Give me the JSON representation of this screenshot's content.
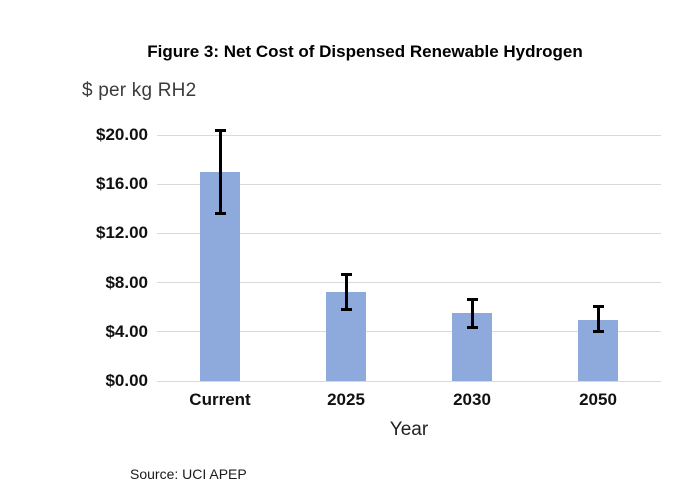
{
  "chart_data": {
    "type": "bar",
    "title": "Figure 3: Net Cost of Dispensed Renewable Hydrogen",
    "ylabel": "$ per kg RH2",
    "xlabel": "Year",
    "source_note": "Source: UCI APEP",
    "categories": [
      "Current",
      "2025",
      "2030",
      "2050"
    ],
    "values": [
      17.0,
      7.2,
      5.5,
      5.0
    ],
    "error_bars": {
      "low": [
        13.6,
        5.8,
        4.3,
        4.0
      ],
      "high": [
        20.4,
        8.7,
        6.7,
        6.1
      ]
    },
    "ytick_values": [
      0,
      4,
      8,
      12,
      16,
      20
    ],
    "ytick_labels": [
      "$0.00",
      "$4.00",
      "$8.00",
      "$12.00",
      "$16.00",
      "$20.00"
    ],
    "ylim": [
      0,
      20
    ],
    "grid": true,
    "legend": "none",
    "bar_color": "#8EA9DB",
    "error_color": "#000000",
    "gridline_color": "#D9D9D9"
  }
}
